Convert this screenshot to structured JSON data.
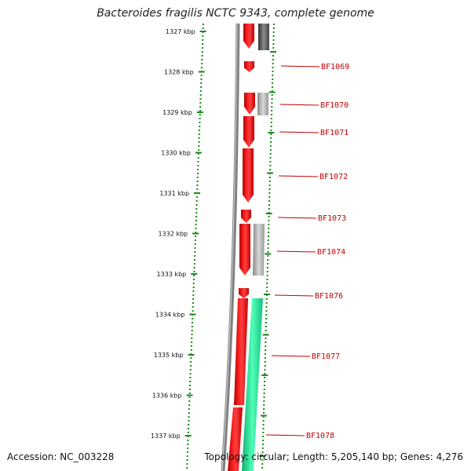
{
  "header": {
    "title": "Bacteroides fragilis NCTC 9343, complete genome"
  },
  "footer": {
    "accession": "Accession: NC_003228",
    "summary": "Topology: circular; Length: 5,205,140 bp; Genes: 4,276"
  },
  "ruler": {
    "ticks": [
      "1327 kbp",
      "1328 kbp",
      "1329 kbp",
      "1330 kbp",
      "1331 kbp",
      "1332 kbp",
      "1333 kbp",
      "1334 kbp",
      "1335 kbp",
      "1336 kbp",
      "1337 kbp"
    ]
  },
  "genes": {
    "labels": [
      "BF1069",
      "BF1070",
      "BF1071",
      "BF1072",
      "BF1073",
      "BF1074",
      "BF1076",
      "BF1077",
      "BF1078"
    ]
  },
  "colors": {
    "forward_cds": "#ff0000",
    "gene_label": "#c00000",
    "backbone": "#808080",
    "ruler_dots": "#1a8a1a",
    "dark_feature": "#555555",
    "light_feature": "#b0b0b0",
    "green_feature": "#1ee89a"
  }
}
